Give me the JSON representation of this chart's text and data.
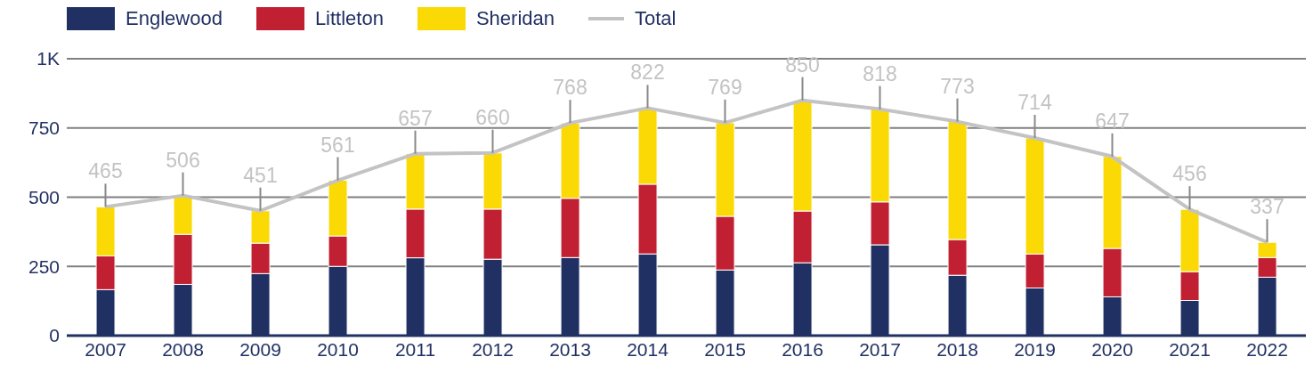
{
  "chart_data": {
    "type": "bar",
    "stacked": true,
    "categories": [
      "2007",
      "2008",
      "2009",
      "2010",
      "2011",
      "2012",
      "2013",
      "2014",
      "2015",
      "2016",
      "2017",
      "2018",
      "2019",
      "2020",
      "2021",
      "2022"
    ],
    "series": [
      {
        "name": "Englewood",
        "color": "#213063",
        "values": [
          166,
          185,
          224,
          250,
          281,
          276,
          282,
          295,
          237,
          263,
          328,
          218,
          172,
          140,
          127,
          211
        ]
      },
      {
        "name": "Littleton",
        "color": "#c12033",
        "values": [
          122,
          181,
          110,
          110,
          176,
          181,
          214,
          252,
          194,
          187,
          155,
          129,
          123,
          175,
          104,
          71
        ]
      },
      {
        "name": "Sheridan",
        "color": "#fad904",
        "values": [
          177,
          140,
          117,
          201,
          200,
          203,
          272,
          275,
          338,
          400,
          335,
          426,
          419,
          332,
          225,
          55
        ]
      },
      {
        "name": "Total",
        "type": "line",
        "color": "#c3c3c5",
        "values": [
          465,
          506,
          451,
          561,
          657,
          660,
          768,
          822,
          769,
          850,
          818,
          773,
          714,
          647,
          456,
          337
        ],
        "value_labels": [
          "465",
          "506",
          "451",
          "561",
          "657",
          "660",
          "768",
          "822",
          "769",
          "850",
          "818",
          "773",
          "714",
          "647",
          "456",
          "337"
        ]
      }
    ],
    "ylim": [
      0,
      1000
    ],
    "yticks": [
      0,
      250,
      500,
      750,
      {
        "value": 1000,
        "label": "1K"
      }
    ],
    "grid": "y",
    "legend": "top left",
    "marker": "none"
  }
}
